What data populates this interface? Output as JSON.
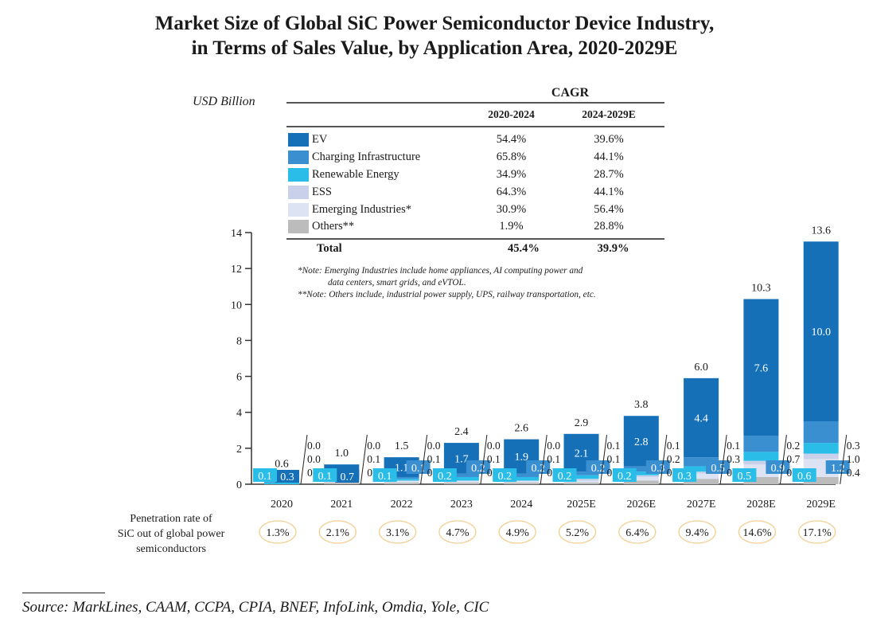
{
  "chart_data": {
    "type": "bar",
    "stacked": true,
    "title": "Market Size of Global SiC Power Semiconductor Device Industry, in Terms of Sales Value, by Application Area, 2020-2029E",
    "title_lines": [
      "Market Size of Global SiC Power Semiconductor Device Industry,",
      "in Terms of Sales Value, by Application Area, 2020-2029E"
    ],
    "ylabel": "USD Billion",
    "xlabel": "",
    "ylim": [
      0,
      14
    ],
    "yticks": [
      0,
      2,
      4,
      6,
      8,
      10,
      12,
      14
    ],
    "grid": false,
    "categories": [
      "2020",
      "2021",
      "2022",
      "2023",
      "2024",
      "2025E",
      "2026E",
      "2027E",
      "2028E",
      "2029E"
    ],
    "totals": [
      0.6,
      1.0,
      1.5,
      2.4,
      2.6,
      2.9,
      3.8,
      6.0,
      10.3,
      13.6
    ],
    "series": [
      {
        "name": "Others**",
        "color": "#bcbcbc",
        "values": [
          0.0,
          0.1,
          0.1,
          0.1,
          0.1,
          0.1,
          0.2,
          0.3,
          0.4,
          0.4
        ]
      },
      {
        "name": "Emerging Industries*",
        "color": "#dde3f2",
        "values": [
          0.0,
          0.1,
          0.1,
          0.1,
          0.1,
          0.1,
          0.2,
          0.3,
          0.7,
          1.0
        ]
      },
      {
        "name": "ESS",
        "color": "#c9d0ea",
        "values": [
          0.0,
          0.0,
          0.0,
          0.0,
          0.0,
          0.1,
          0.1,
          0.1,
          0.2,
          0.3
        ]
      },
      {
        "name": "Renewable Energy",
        "color": "#29bde8",
        "values": [
          0.1,
          0.1,
          0.1,
          0.2,
          0.2,
          0.2,
          0.2,
          0.3,
          0.5,
          0.6
        ]
      },
      {
        "name": "Charging Infrastructure",
        "color": "#3a8fd0",
        "values": [
          0.1,
          0.1,
          0.1,
          0.2,
          0.2,
          0.2,
          0.3,
          0.5,
          0.9,
          1.2
        ]
      },
      {
        "name": "EV",
        "color": "#1570b8",
        "values": [
          0.3,
          0.7,
          1.1,
          1.7,
          1.9,
          2.1,
          2.8,
          4.4,
          7.6,
          10.0
        ]
      }
    ],
    "penetration_label": [
      "Penetration rate of",
      "SiC out of global power",
      "semiconductors"
    ],
    "penetration_rate": [
      "1.3%",
      "2.1%",
      "3.1%",
      "4.7%",
      "4.9%",
      "5.2%",
      "6.4%",
      "9.4%",
      "14.6%",
      "17.1%"
    ],
    "legend_placement": "top-center"
  },
  "cagr_table": {
    "header": "CAGR",
    "columns": [
      "2020-2024",
      "2024-2029E"
    ],
    "rows": [
      {
        "name": "EV",
        "color": "#1570b8",
        "c1": "54.4%",
        "c2": "39.6%"
      },
      {
        "name": "Charging Infrastructure",
        "color": "#3a8fd0",
        "c1": "65.8%",
        "c2": "44.1%"
      },
      {
        "name": "Renewable Energy",
        "color": "#29bde8",
        "c1": "34.9%",
        "c2": "28.7%"
      },
      {
        "name": "ESS",
        "color": "#c9d0ea",
        "c1": "64.3%",
        "c2": "44.1%"
      },
      {
        "name": "Emerging Industries*",
        "color": "#dde3f2",
        "c1": "30.9%",
        "c2": "56.4%"
      },
      {
        "name": "Others**",
        "color": "#bcbcbc",
        "c1": "1.9%",
        "c2": "28.8%"
      }
    ],
    "total": {
      "name": "Total",
      "c1": "45.4%",
      "c2": "39.9%"
    }
  },
  "notes": {
    "note1_line1": "*Note: Emerging Industries include home appliances, AI computing power and",
    "note1_line2": "data centers, smart grids, and eVTOL.",
    "note2": "**Note: Others include, industrial power supply, UPS, railway transportation, etc."
  },
  "source": "Source: MarkLines, CAAM, CCPA, CPIA, BNEF, InfoLink, Omdia, Yole, CIC",
  "colors": {
    "circle_border": "#f3cf93",
    "axis": "#333333"
  }
}
